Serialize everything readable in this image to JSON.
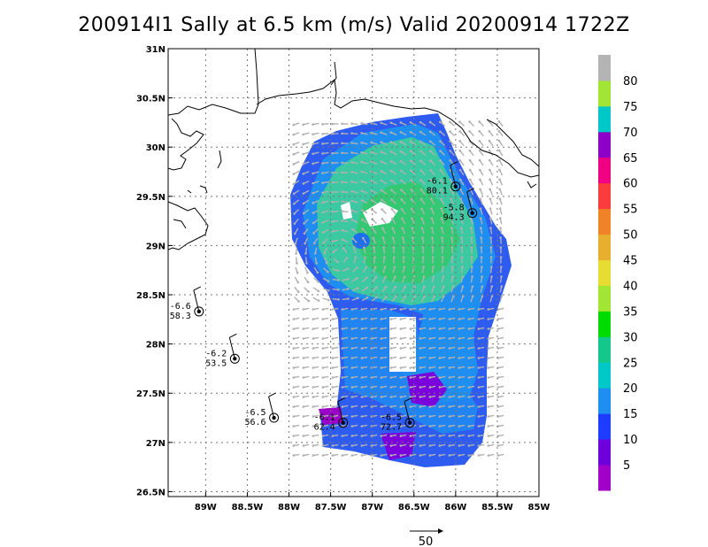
{
  "title": "200914I1 Sally at 6.5 km (m/s) Valid 20200914 1722Z",
  "map": {
    "lon_range": [
      -89.45,
      -85.0
    ],
    "lat_range": [
      26.45,
      31.0
    ],
    "lon_ticks": [
      "89W",
      "88.5W",
      "88W",
      "87.5W",
      "87W",
      "86.5W",
      "86W",
      "85.5W",
      "85W"
    ],
    "lat_ticks": [
      "31N",
      "30.5N",
      "30N",
      "29.5N",
      "29N",
      "28.5N",
      "28N",
      "27.5N",
      "27N",
      "26.5N"
    ],
    "grid": "dotted",
    "storm_center": [
      -87.4,
      28.9
    ]
  },
  "colorbar": {
    "levels": [
      "5",
      "10",
      "15",
      "20",
      "25",
      "30",
      "35",
      "40",
      "45",
      "50",
      "55",
      "60",
      "65",
      "70",
      "75",
      "80"
    ],
    "colors": [
      "#a000c8",
      "#6e00dc",
      "#1e3cff",
      "#1e8ef0",
      "#00c8c8",
      "#14c88c",
      "#00dc00",
      "#a0e632",
      "#e6dc32",
      "#e6af2d",
      "#f08228",
      "#fa3c3c",
      "#f00082",
      "#8c00c8",
      "#00c8c8",
      "#a0e632",
      "#b4b4b4"
    ]
  },
  "stations": [
    {
      "id": "s1",
      "lon": -86.0,
      "lat": 29.6,
      "top": "-6.1",
      "bottom": "80.1"
    },
    {
      "id": "s2",
      "lon": -85.8,
      "lat": 29.33,
      "top": "-5.8",
      "bottom": "94.3"
    },
    {
      "id": "s3",
      "lon": -89.08,
      "lat": 28.33,
      "top": "-6.6",
      "bottom": "58.3"
    },
    {
      "id": "s4",
      "lon": -88.65,
      "lat": 27.85,
      "top": "-6.2",
      "bottom": "53.5"
    },
    {
      "id": "s5",
      "lon": -88.18,
      "lat": 27.25,
      "top": "-6.5",
      "bottom": "56.6"
    },
    {
      "id": "s6",
      "lon": -87.35,
      "lat": 27.2,
      "top": "-6.1",
      "bottom": "62.4"
    },
    {
      "id": "s7",
      "lon": -86.55,
      "lat": 27.2,
      "top": "-6.5",
      "bottom": "72.7"
    }
  ],
  "reference_vector": {
    "label": "50",
    "speed": 50
  }
}
